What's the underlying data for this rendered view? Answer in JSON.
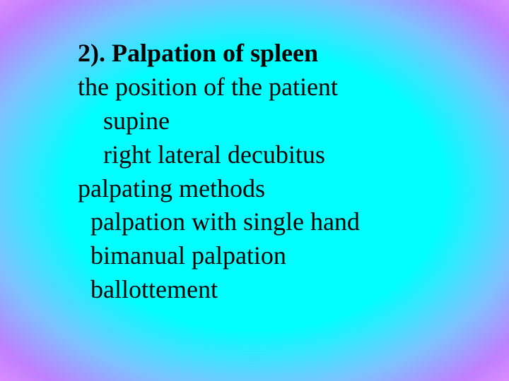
{
  "slide": {
    "background": {
      "type": "radial-gradient",
      "center_color": "#00ffff",
      "mid_colors": [
        "#40e0ff",
        "#80c0ff",
        "#c080ff"
      ],
      "edge_color": "#d8a0e8"
    },
    "text_color": "#000000",
    "font_family": "Times New Roman",
    "font_size_pt": 28,
    "lines": [
      {
        "text": "2). Palpation of spleen",
        "indent": 0,
        "bold": true
      },
      {
        "text": "the position of the patient",
        "indent": 0,
        "bold": false
      },
      {
        "text": "supine",
        "indent": 2,
        "bold": false
      },
      {
        "text": "right lateral decubitus",
        "indent": 2,
        "bold": false
      },
      {
        "text": "palpating methods",
        "indent": 0,
        "bold": false
      },
      {
        "text": "palpation with single hand",
        "indent": 1,
        "bold": false
      },
      {
        "text": "bimanual palpation",
        "indent": 1,
        "bold": false
      },
      {
        "text": "ballottement",
        "indent": 1,
        "bold": false
      }
    ]
  }
}
